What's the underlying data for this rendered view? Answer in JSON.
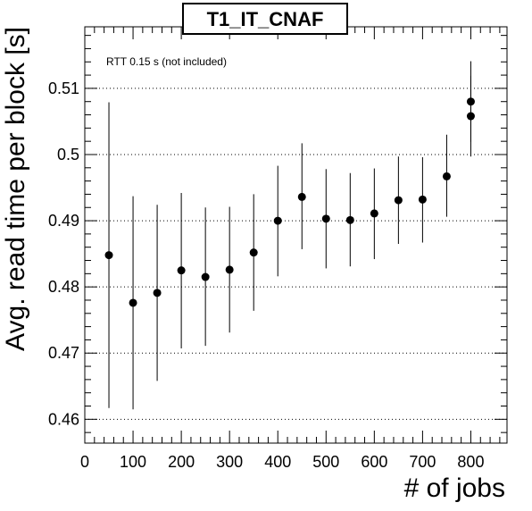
{
  "chart_data": {
    "type": "scatter",
    "title": "T1_IT_CNAF",
    "xlabel": "# of jobs",
    "ylabel": "Avg. read time per block [s]",
    "annotation": "RTT 0.15 s (not included)",
    "xlim": [
      0,
      875
    ],
    "ylim": [
      0.4564,
      0.5193
    ],
    "x_ticks": [
      0,
      100,
      200,
      300,
      400,
      500,
      600,
      700,
      800
    ],
    "y_ticks": [
      0.46,
      0.47,
      0.48,
      0.49,
      0.5,
      0.51
    ],
    "x_tick_labels": [
      "0",
      "100",
      "200",
      "300",
      "400",
      "500",
      "600",
      "700",
      "800"
    ],
    "y_tick_labels": [
      "0.46",
      "0.47",
      "0.48",
      "0.49",
      "0.5",
      "0.51"
    ],
    "grid": "horizontal dotted",
    "points": [
      {
        "x": 50,
        "y": 0.4848,
        "ylo": 0.4617,
        "yhi": 0.5079
      },
      {
        "x": 100,
        "y": 0.4776,
        "ylo": 0.4615,
        "yhi": 0.4937
      },
      {
        "x": 150,
        "y": 0.4791,
        "ylo": 0.4658,
        "yhi": 0.4924
      },
      {
        "x": 200,
        "y": 0.4825,
        "ylo": 0.4707,
        "yhi": 0.4942
      },
      {
        "x": 250,
        "y": 0.4815,
        "ylo": 0.4711,
        "yhi": 0.492
      },
      {
        "x": 300,
        "y": 0.4826,
        "ylo": 0.4731,
        "yhi": 0.4921
      },
      {
        "x": 350,
        "y": 0.4852,
        "ylo": 0.4764,
        "yhi": 0.494
      },
      {
        "x": 400,
        "y": 0.49,
        "ylo": 0.4816,
        "yhi": 0.4983
      },
      {
        "x": 450,
        "y": 0.4936,
        "ylo": 0.4857,
        "yhi": 0.5017
      },
      {
        "x": 500,
        "y": 0.4903,
        "ylo": 0.4828,
        "yhi": 0.4978
      },
      {
        "x": 550,
        "y": 0.4901,
        "ylo": 0.4831,
        "yhi": 0.4972
      },
      {
        "x": 600,
        "y": 0.4911,
        "ylo": 0.4842,
        "yhi": 0.4979
      },
      {
        "x": 650,
        "y": 0.4931,
        "ylo": 0.4865,
        "yhi": 0.4997
      },
      {
        "x": 700,
        "y": 0.4932,
        "ylo": 0.4867,
        "yhi": 0.4996
      },
      {
        "x": 750,
        "y": 0.4967,
        "ylo": 0.4906,
        "yhi": 0.503
      },
      {
        "x": 800,
        "y": 0.5058,
        "ylo": 0.4997,
        "yhi": 0.5119
      },
      {
        "x": 800,
        "y": 0.508,
        "ylo": 0.5019,
        "yhi": 0.5141
      }
    ],
    "marker_color": "#000000"
  }
}
